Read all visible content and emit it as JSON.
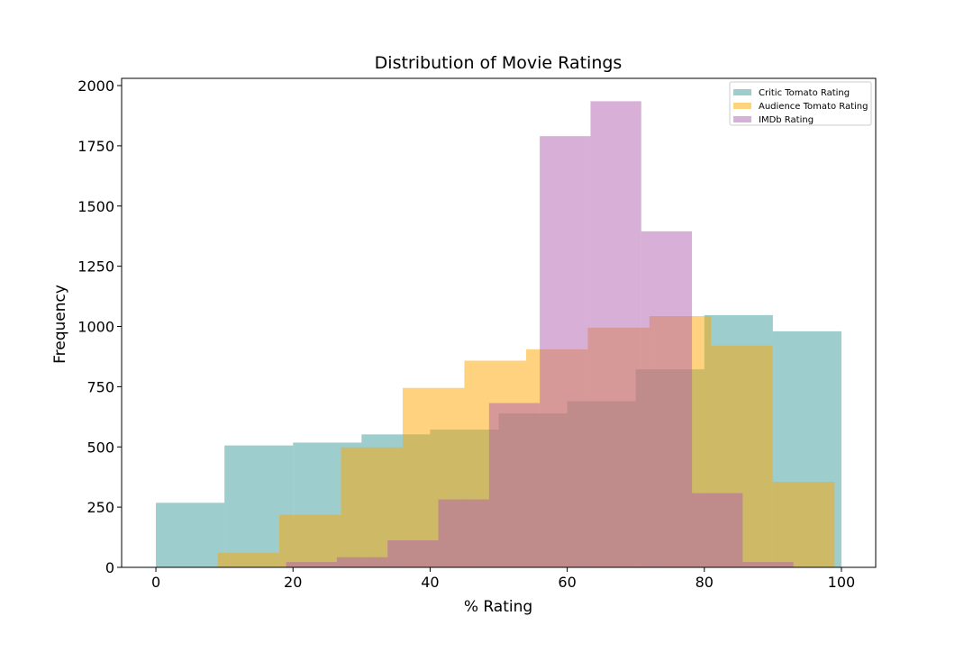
{
  "chart_data": {
    "type": "bar",
    "title": "Distribution of Movie Ratings",
    "xlabel": "% Rating",
    "ylabel": "Frequency",
    "xlim": [
      -5,
      105
    ],
    "ylim": [
      0,
      2030
    ],
    "grid": false,
    "legend_position": "top-right",
    "x_ticks": [
      0,
      20,
      40,
      60,
      80,
      100
    ],
    "y_ticks": [
      0,
      250,
      500,
      750,
      1000,
      1250,
      1500,
      1750,
      2000
    ],
    "series": [
      {
        "name": "Critic Tomato Rating",
        "color": "#3c9b9b",
        "opacity": 0.5,
        "bins": [
          {
            "x0": 0,
            "x1": 10,
            "count": 268
          },
          {
            "x0": 10,
            "x1": 20,
            "count": 506
          },
          {
            "x0": 20,
            "x1": 30,
            "count": 518
          },
          {
            "x0": 30,
            "x1": 40,
            "count": 552
          },
          {
            "x0": 40,
            "x1": 50,
            "count": 572
          },
          {
            "x0": 50,
            "x1": 60,
            "count": 639
          },
          {
            "x0": 60,
            "x1": 70,
            "count": 690
          },
          {
            "x0": 70,
            "x1": 80,
            "count": 822
          },
          {
            "x0": 80,
            "x1": 90,
            "count": 1047
          },
          {
            "x0": 90,
            "x1": 100,
            "count": 980
          }
        ]
      },
      {
        "name": "Audience Tomato Rating",
        "color": "#ffa500",
        "opacity": 0.5,
        "bins": [
          {
            "x0": 9,
            "x1": 18,
            "count": 60
          },
          {
            "x0": 18,
            "x1": 27,
            "count": 218
          },
          {
            "x0": 27,
            "x1": 36,
            "count": 498
          },
          {
            "x0": 36,
            "x1": 45,
            "count": 745
          },
          {
            "x0": 45,
            "x1": 54,
            "count": 858
          },
          {
            "x0": 54,
            "x1": 63,
            "count": 905
          },
          {
            "x0": 63,
            "x1": 72,
            "count": 995
          },
          {
            "x0": 72,
            "x1": 81,
            "count": 1043
          },
          {
            "x0": 81,
            "x1": 90,
            "count": 920
          },
          {
            "x0": 90,
            "x1": 99,
            "count": 355
          }
        ]
      },
      {
        "name": "IMDb Rating",
        "color": "#b060b0",
        "opacity": 0.5,
        "bins": [
          {
            "x0": 19,
            "x1": 26.4,
            "count": 22
          },
          {
            "x0": 26.4,
            "x1": 33.8,
            "count": 42
          },
          {
            "x0": 33.8,
            "x1": 41.2,
            "count": 112
          },
          {
            "x0": 41.2,
            "x1": 48.6,
            "count": 282
          },
          {
            "x0": 48.6,
            "x1": 56,
            "count": 682
          },
          {
            "x0": 56,
            "x1": 63.4,
            "count": 1790
          },
          {
            "x0": 63.4,
            "x1": 70.8,
            "count": 1935
          },
          {
            "x0": 70.8,
            "x1": 78.2,
            "count": 1395
          },
          {
            "x0": 78.2,
            "x1": 85.6,
            "count": 308
          },
          {
            "x0": 85.6,
            "x1": 93,
            "count": 22
          }
        ]
      }
    ]
  }
}
